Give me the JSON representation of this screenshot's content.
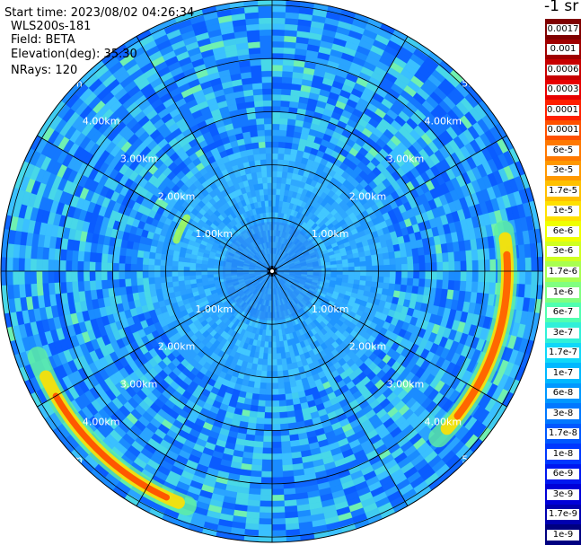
{
  "header": {
    "start_time": "Start time: 2023/08/02 04:26:34",
    "instrument": "WLS200s-181",
    "field": "Field: BETA",
    "elevation": "Elevation(deg): 35.30",
    "nrays": "NRays: 120"
  },
  "unit_label": "-1 sr",
  "range_rings": [
    {
      "label": "1.00km",
      "km": 1
    },
    {
      "label": "2.00km",
      "km": 2
    },
    {
      "label": "3.00km",
      "km": 3
    },
    {
      "label": "4.00km",
      "km": 4
    },
    {
      "label": "5.00km",
      "km": 5
    }
  ],
  "colorbar": {
    "ticks": [
      "0.0017",
      "0.001",
      "0.0006",
      "0.0003",
      "0.00017",
      "0.0001",
      "6e-5",
      "3e-5",
      "1.7e-5",
      "1e-5",
      "6e-6",
      "3e-6",
      "1.7e-6",
      "1e-6",
      "6e-7",
      "3e-7",
      "1.7e-7",
      "1e-7",
      "6e-8",
      "3e-8",
      "1.7e-8",
      "1e-8",
      "6e-9",
      "3e-9",
      "1.7e-9",
      "1e-9"
    ],
    "colors": [
      "#800000",
      "#a00000",
      "#c80000",
      "#e80000",
      "#ff2000",
      "#ff5000",
      "#ff7800",
      "#ff9800",
      "#ffc000",
      "#ffe000",
      "#f0ff00",
      "#d0ff20",
      "#a8ff50",
      "#80ff80",
      "#50ffb0",
      "#30f0d8",
      "#10d8f8",
      "#00b8ff",
      "#0098ff",
      "#0078ff",
      "#0058ff",
      "#0038ff",
      "#0018f0",
      "#0000d8",
      "#0000b0",
      "#000080"
    ]
  }
}
